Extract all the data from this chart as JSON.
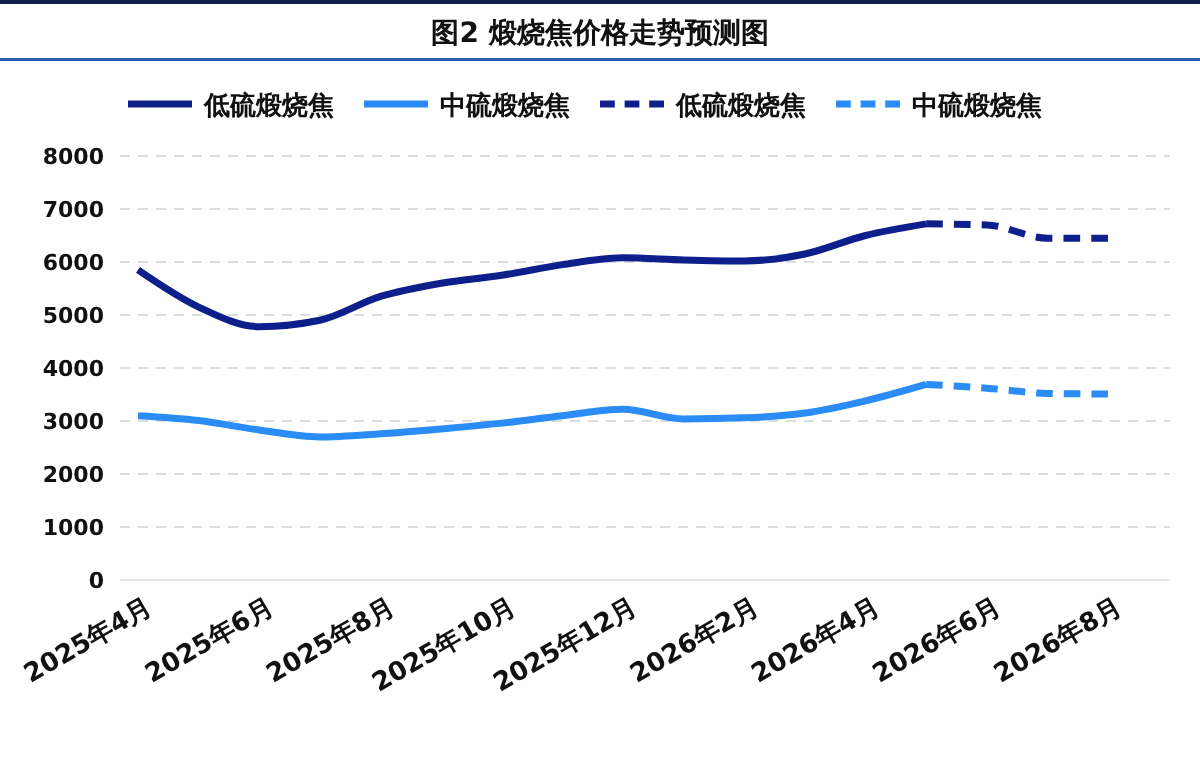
{
  "chart_data": {
    "type": "line",
    "title": "图2  煅烧焦价格走势预测图",
    "categories": [
      "2025年4月",
      null,
      "2025年6月",
      null,
      "2025年8月",
      null,
      "2025年10月",
      null,
      "2025年12月",
      null,
      "2026年2月",
      null,
      "2026年4月",
      null,
      "2026年6月",
      null,
      "2026年8月"
    ],
    "series": [
      {
        "name": "低硫煅烧焦",
        "color": "#0d1f8a",
        "line_style": "solid",
        "values": [
          5850,
          5150,
          4780,
          4900,
          5350,
          5600,
          5750,
          5950,
          6080,
          6040,
          6020,
          6150,
          6500,
          6720,
          null,
          null,
          null
        ]
      },
      {
        "name": "中硫煅烧焦",
        "color": "#2b8cf5",
        "line_style": "solid",
        "values": [
          3100,
          3010,
          2830,
          2700,
          2760,
          2850,
          2960,
          3100,
          3220,
          3040,
          3060,
          3150,
          3380,
          3690,
          null,
          null,
          null
        ]
      },
      {
        "name": "低硫煅烧焦",
        "color": "#0d1f8a",
        "line_style": "dashed",
        "values": [
          null,
          null,
          null,
          null,
          null,
          null,
          null,
          null,
          null,
          null,
          null,
          null,
          null,
          6720,
          6700,
          6450,
          6450
        ]
      },
      {
        "name": "中硫煅烧焦",
        "color": "#2b8cf5",
        "line_style": "dashed",
        "values": [
          null,
          null,
          null,
          null,
          null,
          null,
          null,
          null,
          null,
          null,
          null,
          null,
          null,
          3690,
          3620,
          3520,
          3510
        ]
      }
    ],
    "ylim": [
      0,
      8000
    ],
    "yticks": [
      0,
      1000,
      2000,
      3000,
      4000,
      5000,
      6000,
      7000,
      8000
    ],
    "grid": "y",
    "legend": "top",
    "marker": "none"
  }
}
